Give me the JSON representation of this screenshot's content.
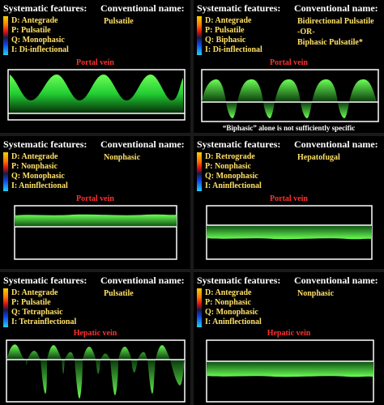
{
  "headings": {
    "systematic": "Systematic features:",
    "conventional": "Conventional name:"
  },
  "colors": {
    "waveform": "#22dd33",
    "vessel_label": "#ff3030",
    "feature_text": "#ffe066"
  },
  "panels": [
    {
      "features": [
        "D: Antegrade",
        "P: Pulsatile",
        "Q: Monophasic",
        "I: Di-inflectional"
      ],
      "conventional_name": [
        "Pulsatile"
      ],
      "vessel": "Portal vein",
      "note": ""
    },
    {
      "features": [
        "D: Antegrade",
        "P: Pulsatile",
        "Q: Biphasic",
        "I: Di-inflectional"
      ],
      "conventional_name": [
        "Bidirectional Pulsatile",
        "-OR-",
        "Biphasic Pulsatile*"
      ],
      "vessel": "Portal vein",
      "note": "“Biphasic” alone is not sufficiently specific"
    },
    {
      "features": [
        "D: Antegrade",
        "P: Nonphasic",
        "Q: Monophasic",
        "I: Aninflectional"
      ],
      "conventional_name": [
        "Nonphasic"
      ],
      "vessel": "Portal vein",
      "note": ""
    },
    {
      "features": [
        "D: Retrograde",
        "P: Nonphasic",
        "Q: Monophasic",
        "I: Aninflectional"
      ],
      "conventional_name": [
        "Hepatofugal"
      ],
      "vessel": "Portal vein",
      "note": ""
    },
    {
      "features": [
        "D: Antegrade",
        "P: Pulsatile",
        "Q: Tetraphasic",
        "I: Tetrainflectional"
      ],
      "conventional_name": [
        "Pulsatile"
      ],
      "vessel": "Hepatic vein",
      "note": ""
    },
    {
      "features": [
        "D: Antegrade",
        "P: Nonphasic",
        "Q: Monophasic",
        "I: Aninflectional"
      ],
      "conventional_name": [
        "Nonphasic"
      ],
      "vessel": "Hepatic vein",
      "note": ""
    }
  ]
}
